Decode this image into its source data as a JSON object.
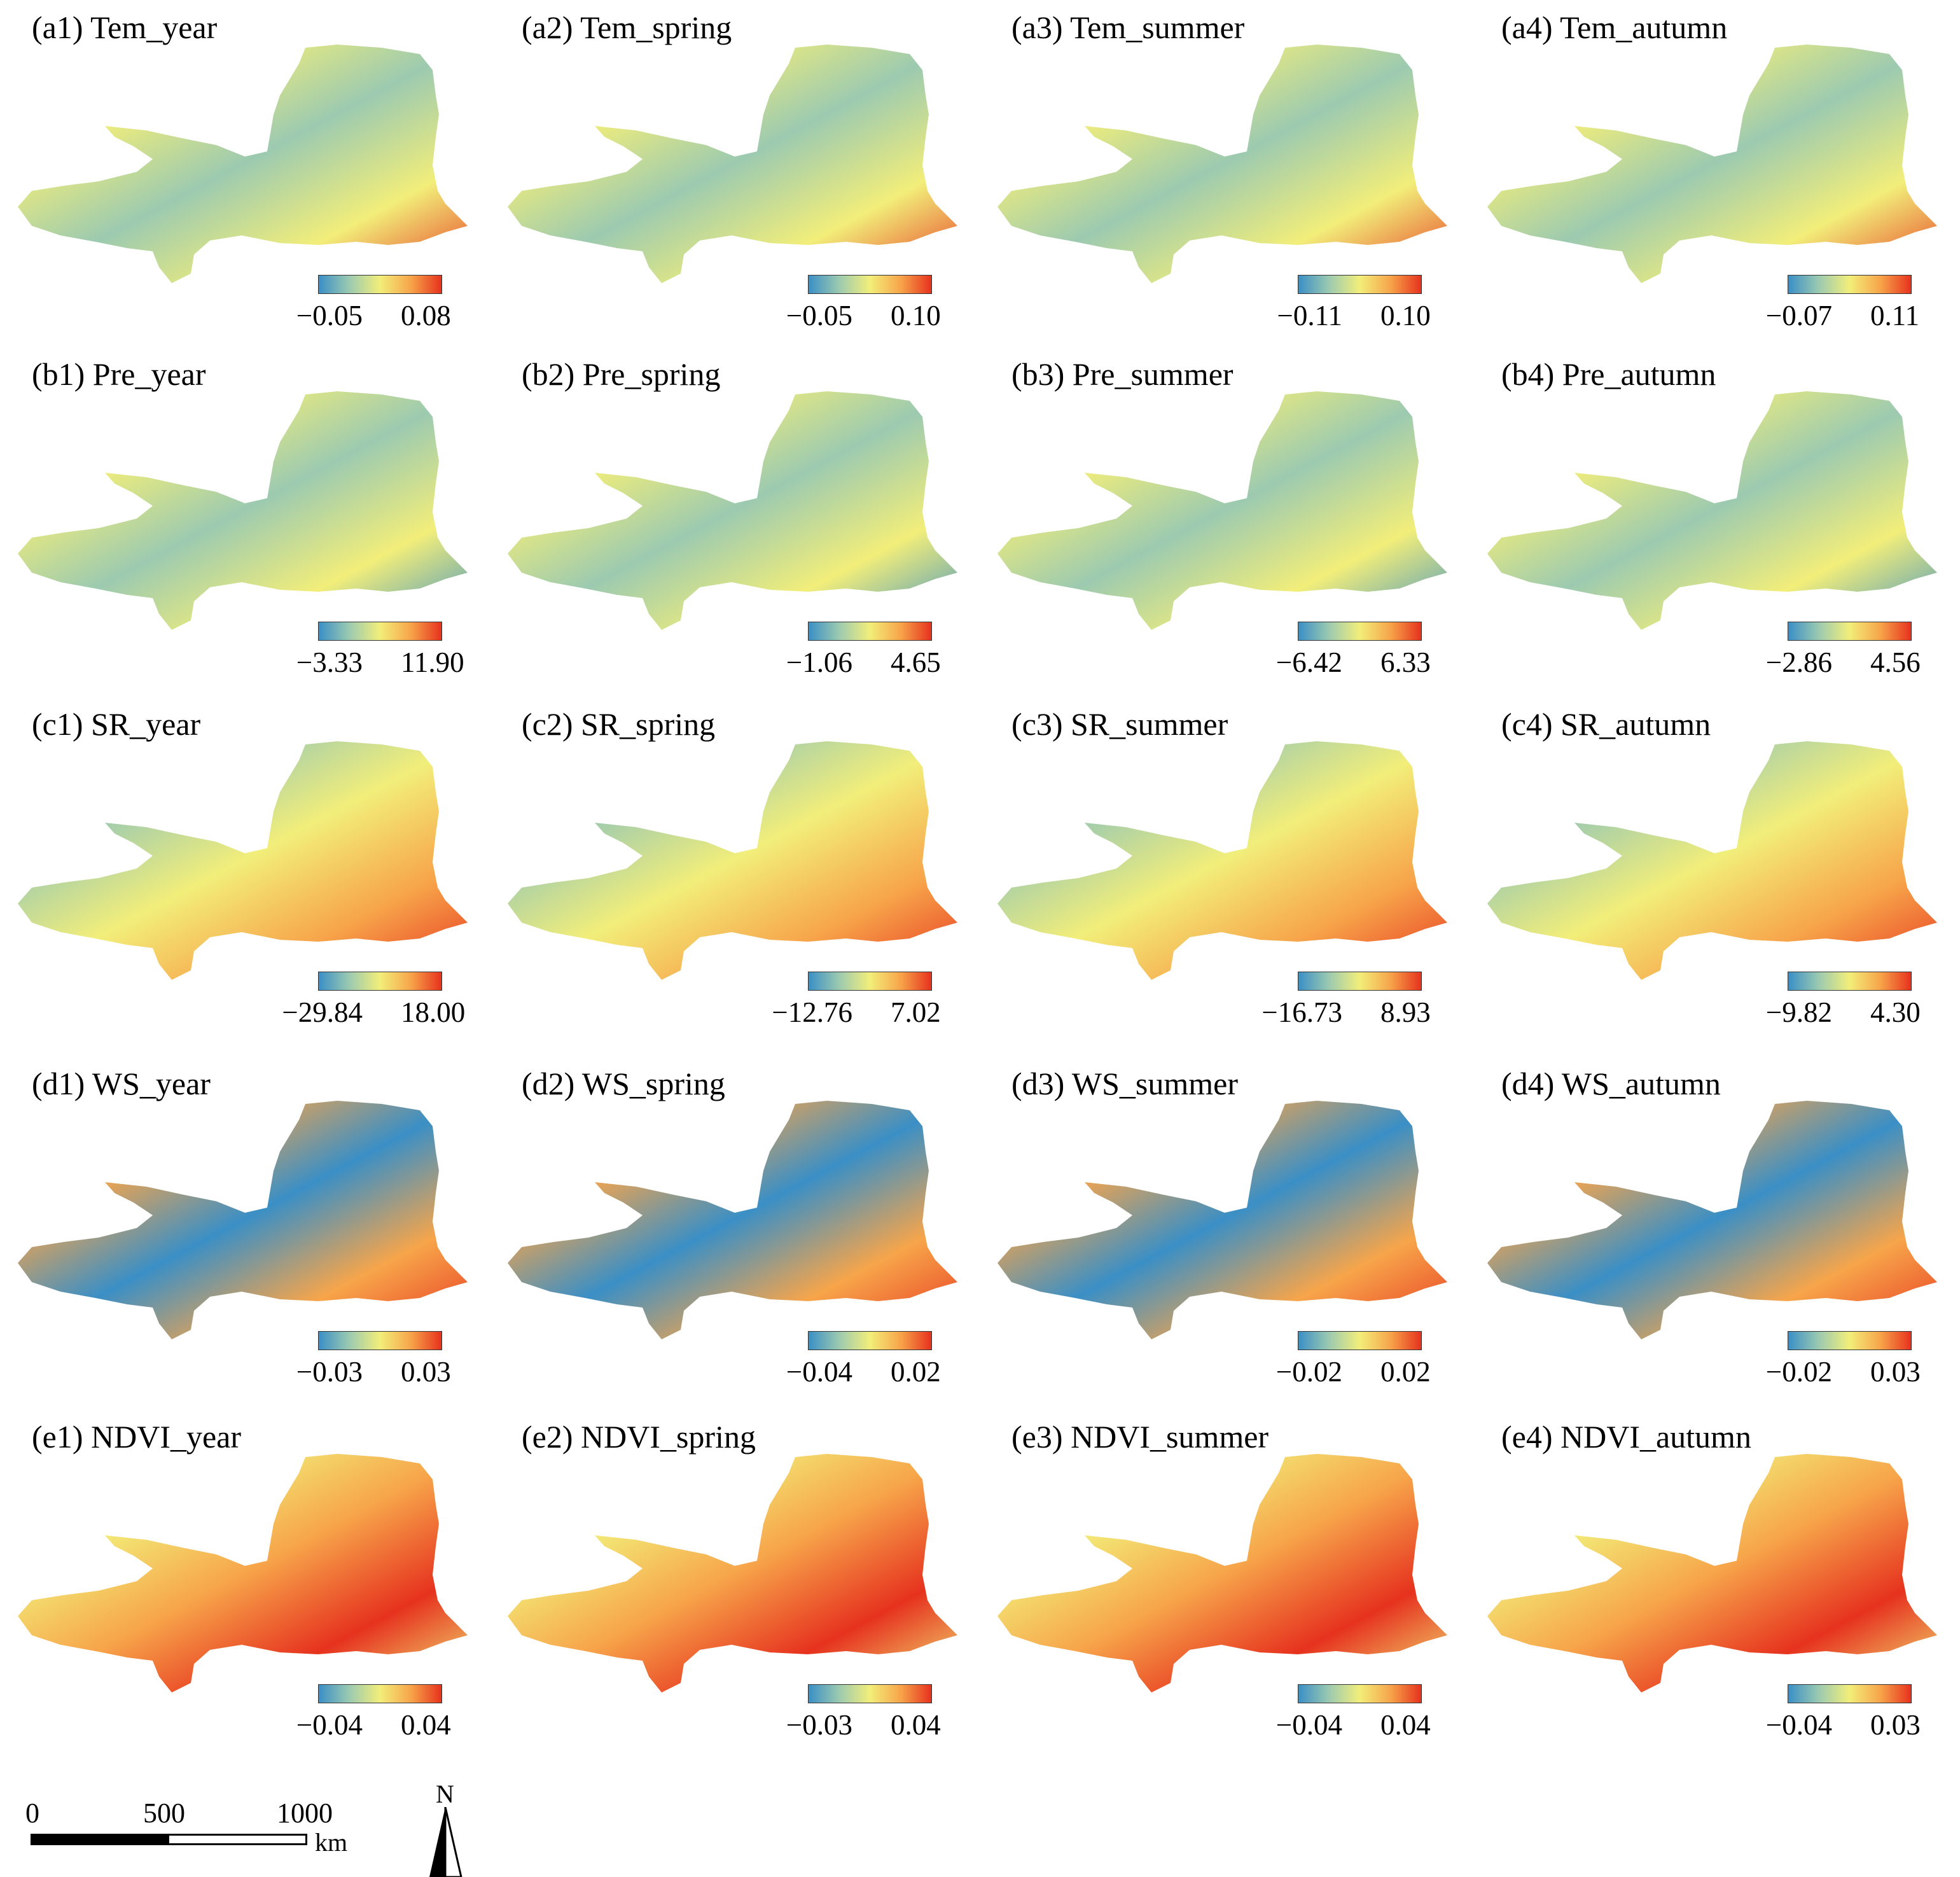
{
  "colors": {
    "ramp": [
      "#3a8fc6",
      "#9ccab0",
      "#f2ee7a",
      "#f7a54a",
      "#e6321e"
    ]
  },
  "panels": [
    {
      "id": "a1",
      "title": "(a1) Tem_year",
      "min": "−0.05",
      "max": "0.08"
    },
    {
      "id": "a2",
      "title": "(a2) Tem_spring",
      "min": "−0.05",
      "max": "0.10"
    },
    {
      "id": "a3",
      "title": "(a3) Tem_summer",
      "min": "−0.11",
      "max": "0.10"
    },
    {
      "id": "a4",
      "title": "(a4) Tem_autumn",
      "min": "−0.07",
      "max": "0.11"
    },
    {
      "id": "b1",
      "title": "(b1) Pre_year",
      "min": "−3.33",
      "max": "11.90"
    },
    {
      "id": "b2",
      "title": "(b2) Pre_spring",
      "min": "−1.06",
      "max": "4.65"
    },
    {
      "id": "b3",
      "title": "(b3) Pre_summer",
      "min": "−6.42",
      "max": "6.33"
    },
    {
      "id": "b4",
      "title": "(b4) Pre_autumn",
      "min": "−2.86",
      "max": "4.56"
    },
    {
      "id": "c1",
      "title": "(c1) SR_year",
      "min": "−29.84",
      "max": "18.00"
    },
    {
      "id": "c2",
      "title": "(c2) SR_spring",
      "min": "−12.76",
      "max": "7.02"
    },
    {
      "id": "c3",
      "title": "(c3) SR_summer",
      "min": "−16.73",
      "max": "8.93"
    },
    {
      "id": "c4",
      "title": "(c4) SR_autumn",
      "min": "−9.82",
      "max": "4.30"
    },
    {
      "id": "d1",
      "title": "(d1) WS_year",
      "min": "−0.03",
      "max": "0.03"
    },
    {
      "id": "d2",
      "title": "(d2) WS_spring",
      "min": "−0.04",
      "max": "0.02"
    },
    {
      "id": "d3",
      "title": "(d3) WS_summer",
      "min": "−0.02",
      "max": "0.02"
    },
    {
      "id": "d4",
      "title": "(d4) WS_autumn",
      "min": "−0.02",
      "max": "0.03"
    },
    {
      "id": "e1",
      "title": "(e1) NDVI_year",
      "min": "−0.04",
      "max": "0.04"
    },
    {
      "id": "e2",
      "title": "(e2) NDVI_spring",
      "min": "−0.03",
      "max": "0.04"
    },
    {
      "id": "e3",
      "title": "(e3) NDVI_summer",
      "min": "−0.04",
      "max": "0.04"
    },
    {
      "id": "e4",
      "title": "(e4) NDVI_autumn",
      "min": "−0.04",
      "max": "0.03"
    }
  ],
  "scalebar": {
    "label_0": "0",
    "label_500": "500",
    "label_1000": "1000",
    "unit": "km"
  },
  "north_arrow": {
    "letter": "N"
  }
}
